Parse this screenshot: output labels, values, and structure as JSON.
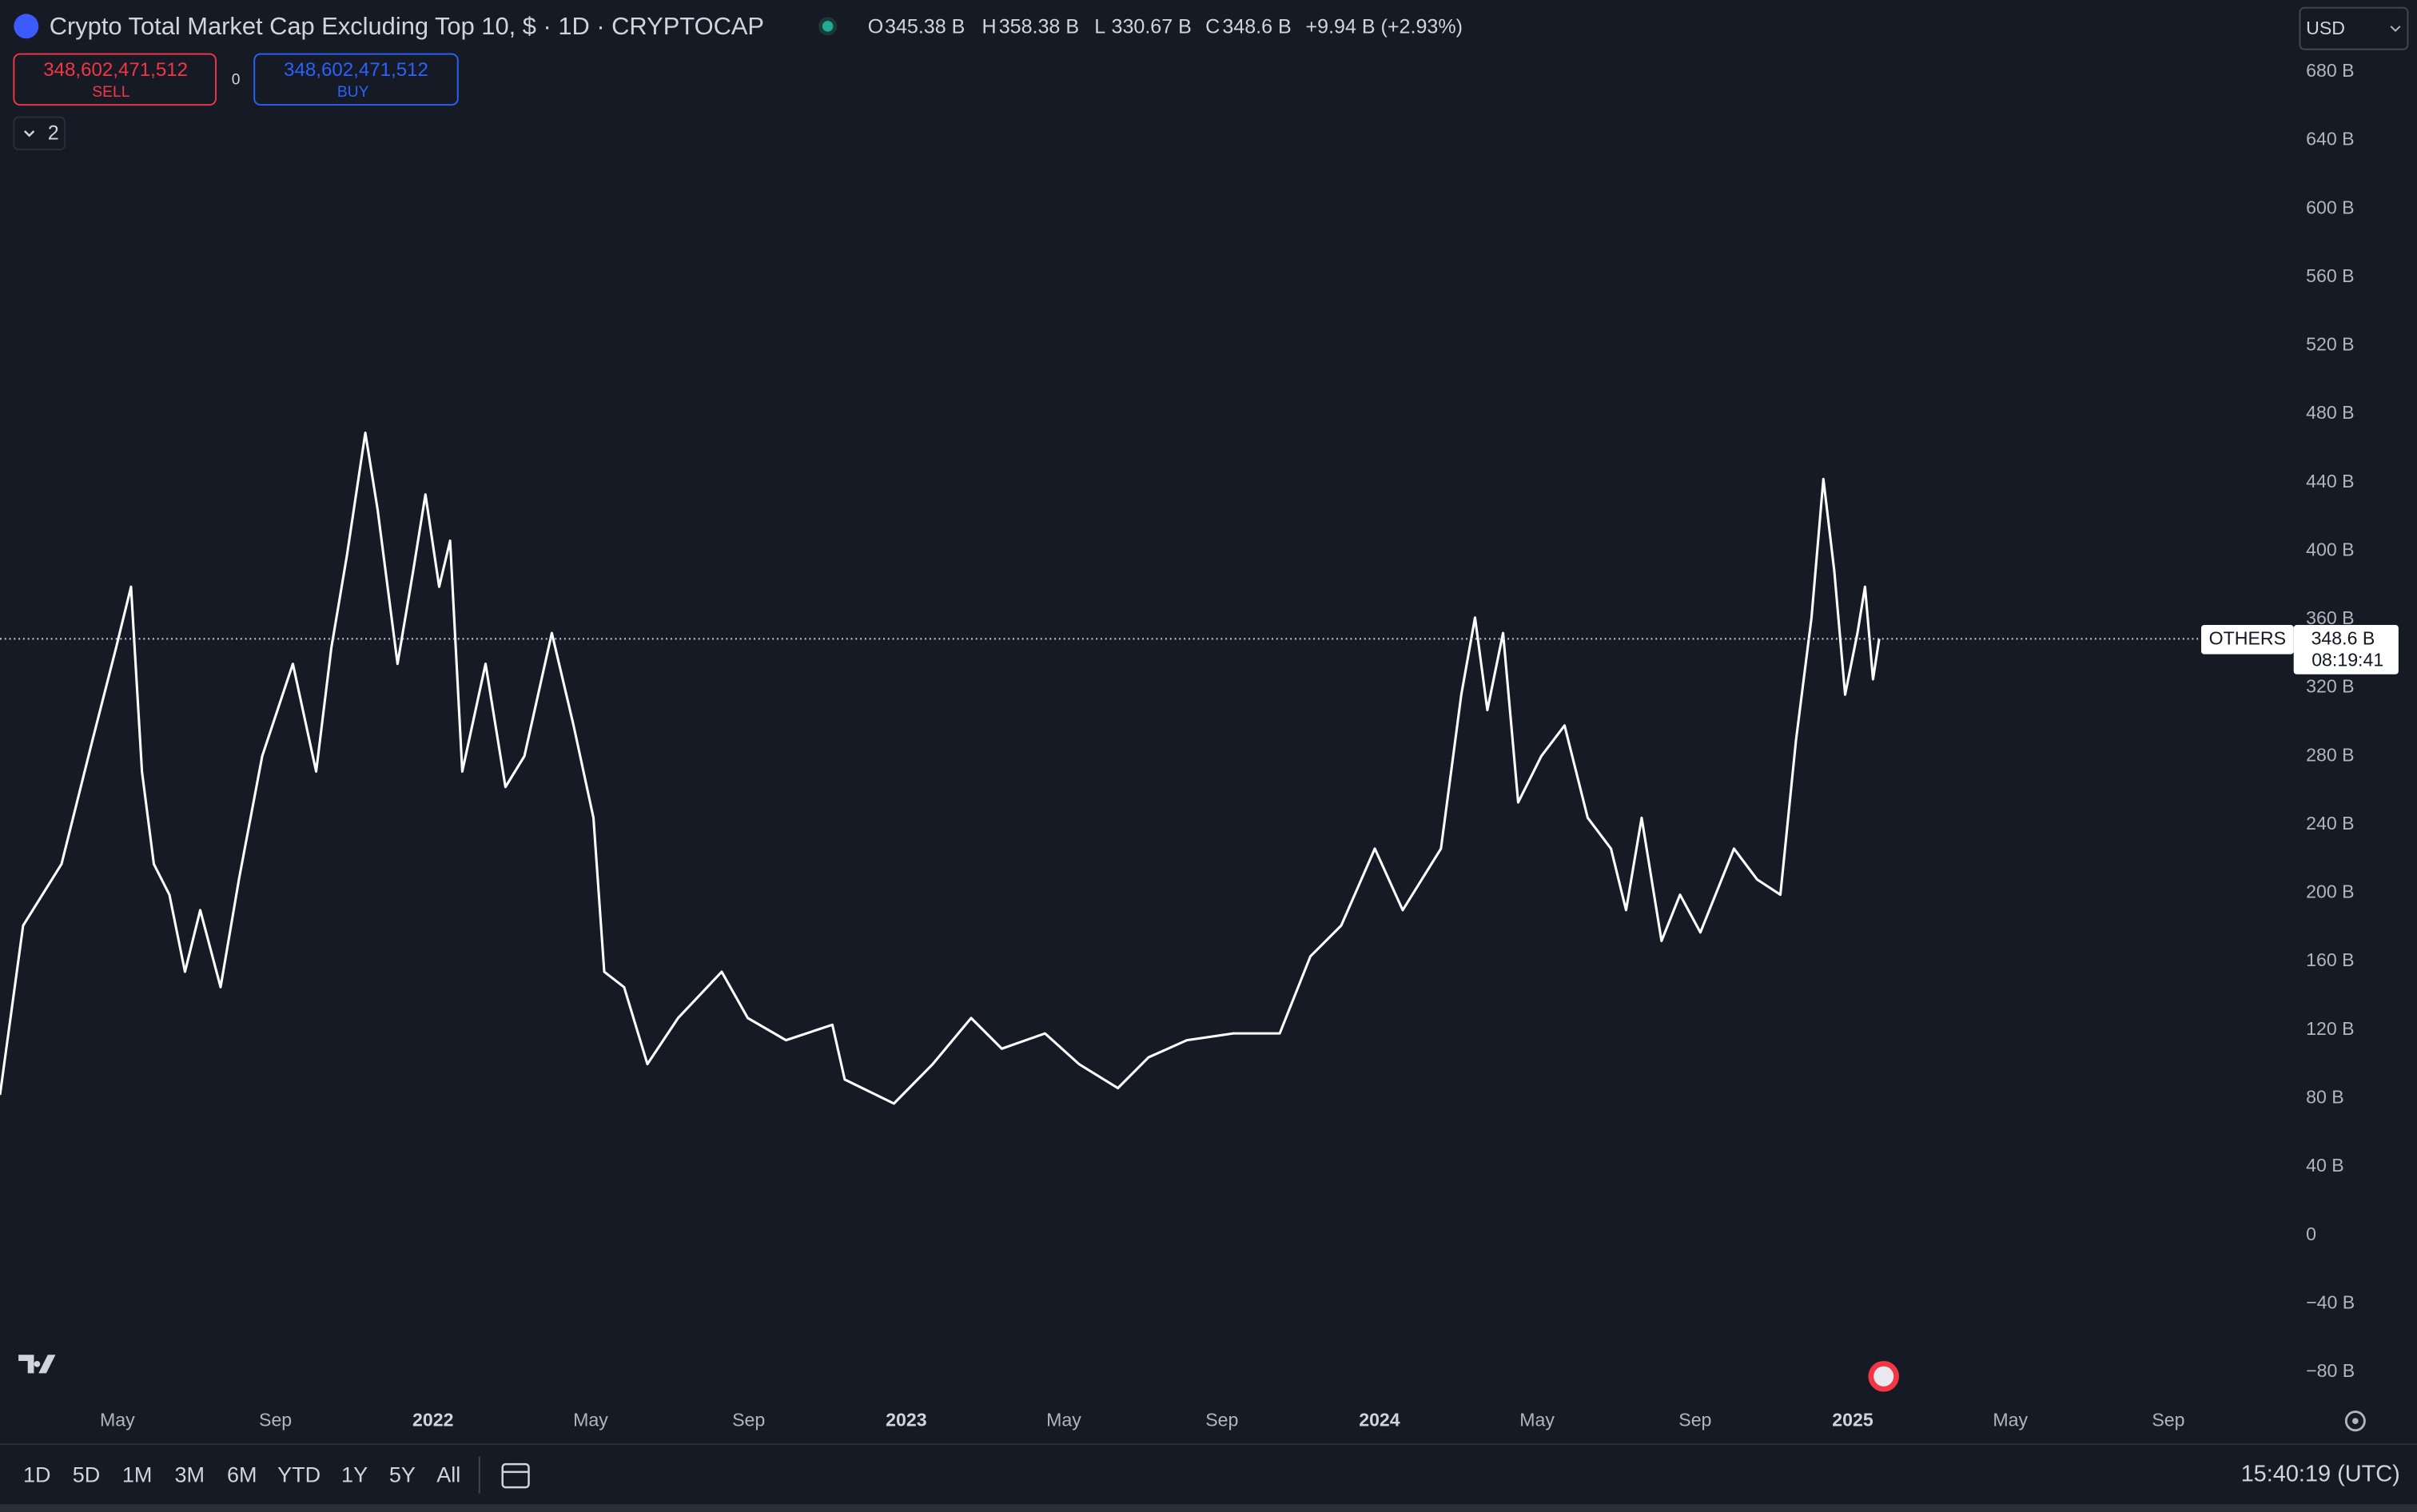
{
  "header": {
    "title": "Crypto Total Market Cap Excluding Top 10, $ · 1D · CRYPTOCAP",
    "ohlc": [
      {
        "key": "O",
        "text": "345.38 B"
      },
      {
        "key": "H",
        "text": "358.38 B"
      },
      {
        "key": "L",
        "text": "330.67 B"
      },
      {
        "key": "C",
        "text": "348.6 B"
      }
    ],
    "change": "+9.94 B (+2.93%)",
    "currency": "USD"
  },
  "trade": {
    "sell_price": "348,602,471,512",
    "sell_label": "SELL",
    "spread": "0",
    "buy_price": "348,602,471,512",
    "buy_label": "BUY",
    "indicators_count": "2"
  },
  "chart_data": {
    "type": "line",
    "title": "Crypto Total Market Cap Excluding Top 10, $ · 1D · CRYPTOCAP",
    "x": [
      2021.085,
      2021.134,
      2021.215,
      2021.28,
      2021.33,
      2021.362,
      2021.385,
      2021.41,
      2021.443,
      2021.476,
      2021.508,
      2021.551,
      2021.59,
      2021.639,
      2021.704,
      2021.753,
      2021.785,
      2021.818,
      2021.857,
      2021.883,
      2021.925,
      2021.958,
      2021.984,
      2022.013,
      2022.036,
      2022.062,
      2022.111,
      2022.153,
      2022.193,
      2022.251,
      2022.297,
      2022.339,
      2022.362,
      2022.404,
      2022.453,
      2022.518,
      2022.61,
      2022.665,
      2022.746,
      2022.844,
      2022.87,
      2022.974,
      2023.056,
      2023.137,
      2023.202,
      2023.293,
      2023.365,
      2023.447,
      2023.512,
      2023.593,
      2023.691,
      2023.789,
      2023.854,
      2023.919,
      2023.99,
      2024.049,
      2024.13,
      2024.173,
      2024.202,
      2024.228,
      2024.261,
      2024.293,
      2024.342,
      2024.391,
      2024.44,
      2024.489,
      2024.521,
      2024.554,
      2024.596,
      2024.635,
      2024.678,
      2024.749,
      2024.798,
      2024.847,
      2024.88,
      2024.913,
      2024.938,
      2024.961,
      2024.984,
      2025.01,
      2025.026,
      2025.043,
      2025.056
    ],
    "series": [
      {
        "name": "OTHERS",
        "color": "#ffffff",
        "values": [
          82,
          181,
          217,
          289,
          343,
          379,
          271,
          217,
          199,
          154,
          190,
          145,
          208,
          280,
          334,
          271,
          343,
          397,
          469,
          424,
          334,
          388,
          433,
          379,
          406,
          271,
          334,
          262,
          280,
          352,
          298,
          244,
          154,
          145,
          100,
          127,
          154,
          127,
          114,
          123,
          91,
          77,
          100,
          127,
          109,
          118,
          100,
          86,
          104,
          114,
          118,
          118,
          163,
          181,
          226,
          190,
          226,
          316,
          361,
          307,
          352,
          253,
          280,
          298,
          244,
          226,
          190,
          244,
          172,
          199,
          177,
          226,
          208,
          199,
          289,
          361,
          442,
          388,
          316,
          352,
          379,
          325,
          348.6
        ]
      }
    ],
    "xlim": [
      2021.085,
      2025.922
    ],
    "xticks": [
      {
        "value": 2021.333,
        "label": "May"
      },
      {
        "value": 2021.667,
        "label": "Sep"
      },
      2022,
      {
        "value": 2022.333,
        "label": "May"
      },
      {
        "value": 2022.667,
        "label": "Sep"
      },
      2023,
      {
        "value": 2023.333,
        "label": "May"
      },
      {
        "value": 2023.667,
        "label": "Sep"
      },
      2024,
      {
        "value": 2024.333,
        "label": "May"
      },
      {
        "value": 2024.667,
        "label": "Sep"
      },
      2025,
      {
        "value": 2025.333,
        "label": "May"
      },
      {
        "value": 2025.667,
        "label": "Sep"
      }
    ],
    "ylim": [
      -96,
      722
    ],
    "yticks": [
      {
        "value": -80,
        "label": "−80 B"
      },
      {
        "value": -40,
        "label": "−40 B"
      },
      0,
      {
        "value": 40,
        "label": "40 B"
      },
      {
        "value": 80,
        "label": "80 B"
      },
      {
        "value": 120,
        "label": "120 B"
      },
      {
        "value": 160,
        "label": "160 B"
      },
      {
        "value": 200,
        "label": "200 B"
      },
      {
        "value": 240,
        "label": "240 B"
      },
      {
        "value": 280,
        "label": "280 B"
      },
      {
        "value": 320,
        "label": "320 B"
      },
      {
        "value": 360,
        "label": "360 B"
      },
      {
        "value": 400,
        "label": "400 B"
      },
      {
        "value": 440,
        "label": "440 B"
      },
      {
        "value": 480,
        "label": "480 B"
      },
      {
        "value": 520,
        "label": "520 B"
      },
      {
        "value": 560,
        "label": "560 B"
      },
      {
        "value": 600,
        "label": "600 B"
      },
      {
        "value": 640,
        "label": "640 B"
      },
      {
        "value": 680,
        "label": "680 B"
      }
    ],
    "grid": false,
    "last_price": {
      "value": 348.6,
      "label": "348.6 B"
    },
    "countdown": "08:19:41"
  },
  "toolbar": {
    "ranges": [
      "1D",
      "5D",
      "1M",
      "3M",
      "6M",
      "YTD",
      "1Y",
      "5Y",
      "All"
    ],
    "time": "15:40:19 (UTC)"
  }
}
